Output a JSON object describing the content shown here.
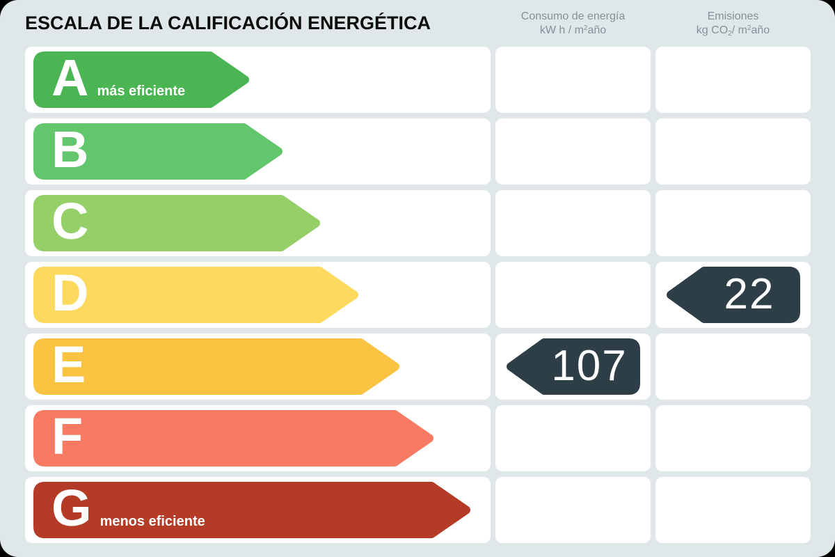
{
  "page": {
    "title": "ESCALA DE LA CALIFICACIÓN ENERGÉTICA"
  },
  "columns": {
    "consumo": {
      "line1": "Consumo de energía",
      "unit_pre": "kW h / m",
      "unit_sup": "2",
      "unit_post": "año"
    },
    "emisiones": {
      "line1": "Emisiones",
      "unit_pre": "kg CO",
      "unit_sub": "2",
      "unit_mid": "/ m",
      "unit_sup": "2",
      "unit_post": "año"
    }
  },
  "scale": {
    "rows": [
      {
        "letter": "A",
        "note": "más eficiente",
        "color": "#4bb553",
        "consumo": "",
        "emisiones": ""
      },
      {
        "letter": "B",
        "note": "",
        "color": "#62c66c",
        "consumo": "",
        "emisiones": ""
      },
      {
        "letter": "C",
        "note": "",
        "color": "#94cf68",
        "consumo": "",
        "emisiones": ""
      },
      {
        "letter": "D",
        "note": "",
        "color": "#fdda5e",
        "consumo": "",
        "emisiones": "22"
      },
      {
        "letter": "E",
        "note": "",
        "color": "#fac342",
        "consumo": "107",
        "emisiones": ""
      },
      {
        "letter": "F",
        "note": "",
        "color": "#f87a62",
        "consumo": "",
        "emisiones": ""
      },
      {
        "letter": "G",
        "note": "menos eficiente",
        "color": "#b43c26",
        "consumo": "",
        "emisiones": ""
      }
    ]
  },
  "colors": {
    "tag": "#2e3e47",
    "background": "#dfe7e9",
    "cell": "#ffffff",
    "header_text": "#84909a"
  },
  "chart_data": {
    "type": "bar",
    "orientation": "horizontal",
    "title": "ESCALA DE LA CALIFICACIÓN ENERGÉTICA",
    "categories": [
      "A",
      "B",
      "C",
      "D",
      "E",
      "F",
      "G"
    ],
    "series": [
      {
        "name": "Consumo de energía kW h / m2año",
        "values": [
          null,
          null,
          null,
          null,
          107,
          null,
          null
        ]
      },
      {
        "name": "Emisiones kg CO2 / m2año",
        "values": [
          null,
          null,
          null,
          22,
          null,
          null,
          null
        ]
      }
    ],
    "annotations": [
      "A = más eficiente",
      "G = menos eficiente"
    ],
    "legend_position": "top"
  }
}
